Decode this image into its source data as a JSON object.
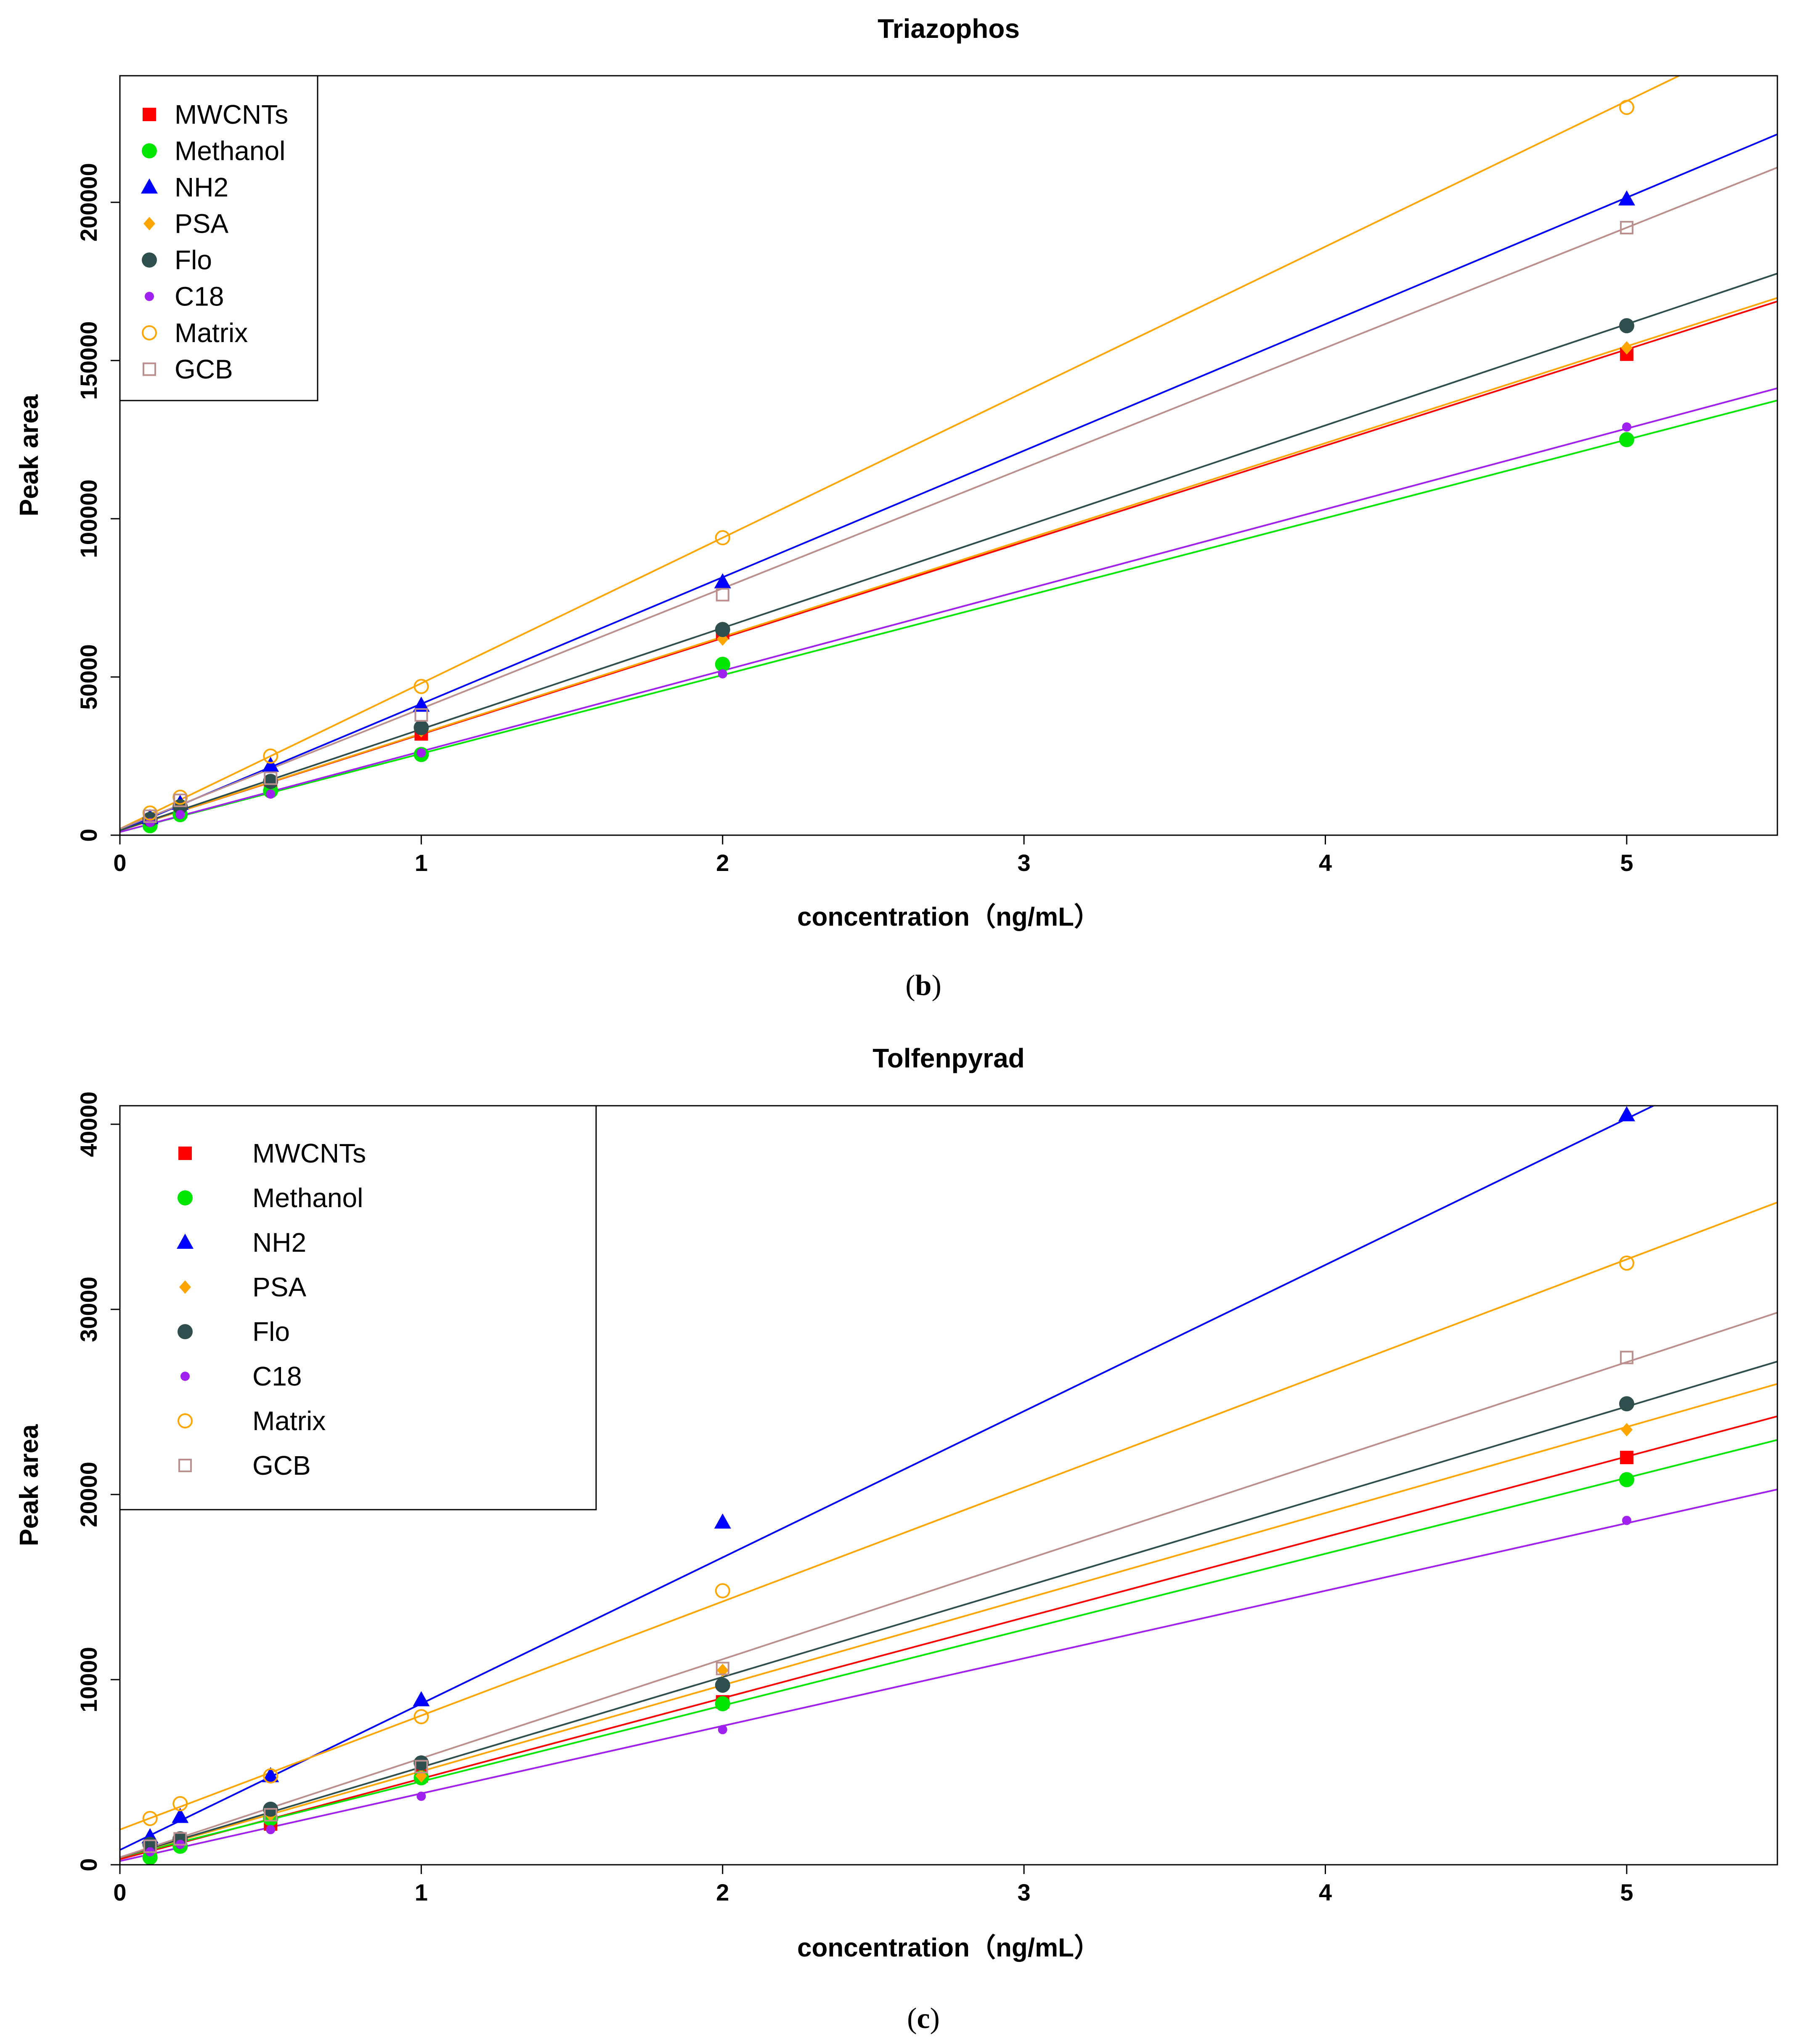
{
  "chart_data": [
    {
      "type": "scatter",
      "title": "Triazophos",
      "xlabel": "concentration（ng/mL）",
      "ylabel": "Peak area",
      "caption_letter": "b",
      "xlim": [
        0,
        5.5
      ],
      "ylim": [
        0,
        240000
      ],
      "xticks": [
        0,
        1,
        2,
        3,
        4,
        5
      ],
      "yticks": [
        0,
        50000,
        100000,
        150000,
        200000
      ],
      "x": [
        0.1,
        0.2,
        0.5,
        1,
        2,
        5
      ],
      "legend_position": "top-left",
      "series": [
        {
          "name": "MWCNTs",
          "marker": "square",
          "color": "#ff0000",
          "values": [
            4500,
            8000,
            16000,
            32000,
            64000,
            152000
          ],
          "fit": [
            1500,
            30400
          ]
        },
        {
          "name": "Methanol",
          "marker": "circle",
          "color": "#00e600",
          "values": [
            3000,
            6500,
            14000,
            25500,
            54000,
            125000
          ],
          "fit": [
            1000,
            24800
          ]
        },
        {
          "name": "NH2",
          "marker": "triangle",
          "color": "#0000ff",
          "values": [
            5500,
            10000,
            22000,
            41000,
            80000,
            201000
          ],
          "fit": [
            1500,
            40000
          ]
        },
        {
          "name": "PSA",
          "marker": "diamond",
          "color": "#ffa500",
          "values": [
            5000,
            8500,
            17000,
            33000,
            62000,
            154000
          ],
          "fit": [
            1500,
            30600
          ]
        },
        {
          "name": "Flo",
          "marker": "circle",
          "color": "#2f4f4f",
          "values": [
            5000,
            9000,
            17000,
            34000,
            65000,
            161000
          ],
          "fit": [
            1500,
            32000
          ]
        },
        {
          "name": "C18",
          "marker": "dot",
          "color": "#a020f0",
          "values": [
            4000,
            6500,
            13000,
            26000,
            51000,
            129000
          ],
          "fit": [
            1000,
            25500
          ]
        },
        {
          "name": "Matrix",
          "marker": "open-circle",
          "color": "#ffa500",
          "values": [
            7000,
            12000,
            25000,
            47000,
            94000,
            230000
          ],
          "fit": [
            2000,
            46000
          ]
        },
        {
          "name": "GCB",
          "marker": "open-square",
          "color": "#bc8f8f",
          "values": [
            6000,
            11000,
            18000,
            38000,
            76000,
            192000
          ],
          "fit": [
            2000,
            38000
          ]
        }
      ]
    },
    {
      "type": "scatter",
      "title": "Tolfenpyrad",
      "xlabel": "concentration（ng/mL）",
      "ylabel": "Peak area",
      "caption_letter": "c",
      "xlim": [
        0,
        5.5
      ],
      "ylim": [
        0,
        41000
      ],
      "xticks": [
        0,
        1,
        2,
        3,
        4,
        5
      ],
      "yticks": [
        0,
        10000,
        20000,
        30000,
        40000
      ],
      "x": [
        0.1,
        0.2,
        0.5,
        1,
        2,
        5
      ],
      "legend_position": "top-left",
      "series": [
        {
          "name": "MWCNTs",
          "marker": "square",
          "color": "#ff0000",
          "values": [
            800,
            1200,
            2200,
            4800,
            8800,
            22000
          ],
          "fit": [
            300,
            4350
          ]
        },
        {
          "name": "Methanol",
          "marker": "circle",
          "color": "#00e600",
          "values": [
            400,
            1000,
            2500,
            4700,
            8700,
            20800
          ],
          "fit": [
            400,
            4100
          ]
        },
        {
          "name": "NH2",
          "marker": "triangle",
          "color": "#0000ff",
          "values": [
            1500,
            2600,
            4800,
            8900,
            18500,
            40500
          ],
          "fit": [
            800,
            7900
          ]
        },
        {
          "name": "PSA",
          "marker": "diamond",
          "color": "#ffa500",
          "values": [
            1000,
            1400,
            2700,
            4800,
            10500,
            23500
          ],
          "fit": [
            400,
            4650
          ]
        },
        {
          "name": "Flo",
          "marker": "circle",
          "color": "#2f4f4f",
          "values": [
            1100,
            1400,
            3000,
            5500,
            9700,
            24900
          ],
          "fit": [
            400,
            4870
          ]
        },
        {
          "name": "C18",
          "marker": "dot",
          "color": "#a020f0",
          "values": [
            700,
            1100,
            1900,
            3700,
            7300,
            18600
          ],
          "fit": [
            200,
            3650
          ]
        },
        {
          "name": "Matrix",
          "marker": "open-circle",
          "color": "#ffa500",
          "values": [
            2500,
            3300,
            4800,
            8000,
            14800,
            32500
          ],
          "fit": [
            1900,
            6160
          ]
        },
        {
          "name": "GCB",
          "marker": "open-square",
          "color": "#bc8f8f",
          "values": [
            1000,
            1400,
            2700,
            5300,
            10600,
            27400
          ],
          "fit": [
            400,
            5350
          ]
        }
      ]
    }
  ]
}
